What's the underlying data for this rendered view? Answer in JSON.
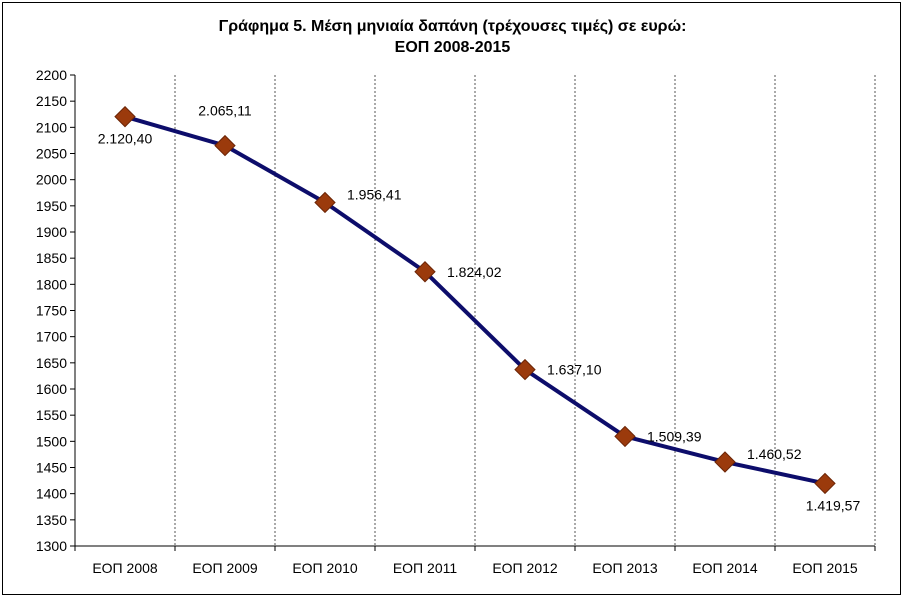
{
  "chart_data": {
    "type": "line",
    "title_lines": [
      "Γράφημα 5. Μέση μηνιαία δαπάνη (τρέχουσες τιμές) σε ευρώ:",
      "ΕΟΠ  2008-2015"
    ],
    "categories": [
      "ΕΟΠ 2008",
      "ΕΟΠ 2009",
      "ΕΟΠ 2010",
      "ΕΟΠ 2011",
      "ΕΟΠ 2012",
      "ΕΟΠ 2013",
      "ΕΟΠ 2014",
      "ΕΟΠ 2015"
    ],
    "series": [
      {
        "values": [
          2120.4,
          2065.11,
          1956.41,
          1824.02,
          1637.1,
          1509.39,
          1460.52,
          1419.57
        ],
        "data_labels": [
          "2.120,40",
          "2.065,11",
          "1.956,41",
          "1.824,02",
          "1.637,10",
          "1.509,39",
          "1.460,52",
          "1.419,57"
        ],
        "line_color": "#0d0d6b",
        "marker": "diamond",
        "marker_color": "#9b3a0c"
      }
    ],
    "ylim": [
      1300,
      2200
    ],
    "ytick_step": 50,
    "y_ticks": [
      "1300",
      "1350",
      "1400",
      "1450",
      "1500",
      "1550",
      "1600",
      "1650",
      "1700",
      "1750",
      "1800",
      "1850",
      "1900",
      "1950",
      "2000",
      "2050",
      "2100",
      "2150",
      "2200"
    ],
    "xlabel": "",
    "ylabel": "",
    "grid": "vertical dashed",
    "legend": "none"
  }
}
